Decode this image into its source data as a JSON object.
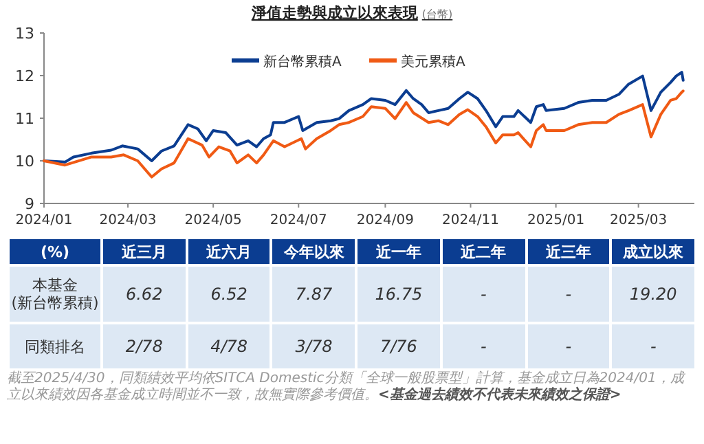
{
  "chart_data": [
    {
      "type": "line",
      "title": "淨值走勢與成立以來表現",
      "subtitle": "(台幣)",
      "xlim": [
        "2024-01-01",
        "2025-04-10"
      ],
      "ylim": [
        9,
        13
      ],
      "yticks": [
        9,
        10,
        11,
        12,
        13
      ],
      "xticks": [
        {
          "value": "2024-01",
          "label": "2024/01"
        },
        {
          "value": "2024-03",
          "label": "2024/03"
        },
        {
          "value": "2024-05",
          "label": "2024/05"
        },
        {
          "value": "2024-07",
          "label": "2024/07"
        },
        {
          "value": "2024-09",
          "label": "2024/09"
        },
        {
          "value": "2024-11",
          "label": "2024/11"
        },
        {
          "value": "2025-01",
          "label": "2025/01"
        },
        {
          "value": "2025-03",
          "label": "2025/03"
        }
      ],
      "legend": "top",
      "series": [
        {
          "name": "新台幣累積A",
          "color": "#0b3d91",
          "x": [
            "2024-01-01",
            "2024-01-16",
            "2024-01-22",
            "2024-02-04",
            "2024-02-18",
            "2024-02-26",
            "2024-03-08",
            "2024-03-18",
            "2024-03-25",
            "2024-04-03",
            "2024-04-13",
            "2024-04-20",
            "2024-04-26",
            "2024-05-01",
            "2024-05-10",
            "2024-05-18",
            "2024-05-26",
            "2024-06-01",
            "2024-06-06",
            "2024-06-11",
            "2024-06-13",
            "2024-06-21",
            "2024-07-01",
            "2024-07-04",
            "2024-07-14",
            "2024-07-24",
            "2024-07-30",
            "2024-08-06",
            "2024-08-16",
            "2024-08-22",
            "2024-09-01",
            "2024-09-08",
            "2024-09-16",
            "2024-09-21",
            "2024-09-27",
            "2024-10-02",
            "2024-10-09",
            "2024-10-16",
            "2024-10-24",
            "2024-10-30",
            "2024-11-06",
            "2024-11-12",
            "2024-11-19",
            "2024-11-24",
            "2024-12-02",
            "2024-12-05",
            "2024-12-14",
            "2024-12-18",
            "2024-12-23",
            "2024-12-25",
            "2025-01-07",
            "2025-01-17",
            "2025-01-27",
            "2025-02-06",
            "2025-02-15",
            "2025-02-22",
            "2025-03-04",
            "2025-03-10",
            "2025-03-17",
            "2025-03-24",
            "2025-03-28",
            "2025-04-01",
            "2025-04-02"
          ],
          "values": [
            10.0,
            9.97,
            10.09,
            10.18,
            10.25,
            10.35,
            10.28,
            10.0,
            10.23,
            10.35,
            10.85,
            10.75,
            10.47,
            10.71,
            10.66,
            10.37,
            10.47,
            10.33,
            10.52,
            10.61,
            10.9,
            10.9,
            11.04,
            10.71,
            10.9,
            10.94,
            10.99,
            11.18,
            11.32,
            11.46,
            11.42,
            11.32,
            11.65,
            11.46,
            11.32,
            11.13,
            11.18,
            11.23,
            11.46,
            11.61,
            11.46,
            11.18,
            10.8,
            11.04,
            11.04,
            11.18,
            10.9,
            11.27,
            11.32,
            11.18,
            11.23,
            11.37,
            11.42,
            11.42,
            11.56,
            11.8,
            11.99,
            11.18,
            11.61,
            11.84,
            11.99,
            12.08,
            11.89
          ]
        },
        {
          "name": "美元累積A",
          "color": "#f05a14",
          "x": [
            "2024-01-01",
            "2024-01-16",
            "2024-02-04",
            "2024-02-18",
            "2024-02-27",
            "2024-03-08",
            "2024-03-18",
            "2024-03-25",
            "2024-04-03",
            "2024-04-13",
            "2024-04-23",
            "2024-04-28",
            "2024-05-05",
            "2024-05-13",
            "2024-05-18",
            "2024-05-26",
            "2024-06-01",
            "2024-06-06",
            "2024-06-13",
            "2024-06-21",
            "2024-07-03",
            "2024-07-06",
            "2024-07-14",
            "2024-07-24",
            "2024-07-30",
            "2024-08-06",
            "2024-08-16",
            "2024-08-22",
            "2024-09-01",
            "2024-09-08",
            "2024-09-16",
            "2024-09-21",
            "2024-10-02",
            "2024-10-09",
            "2024-10-16",
            "2024-10-24",
            "2024-10-30",
            "2024-11-06",
            "2024-11-12",
            "2024-11-19",
            "2024-11-24",
            "2024-12-02",
            "2024-12-05",
            "2024-12-14",
            "2024-12-18",
            "2024-12-23",
            "2024-12-25",
            "2025-01-07",
            "2025-01-17",
            "2025-01-27",
            "2025-02-06",
            "2025-02-15",
            "2025-02-22",
            "2025-03-04",
            "2025-03-10",
            "2025-03-17",
            "2025-03-24",
            "2025-03-28",
            "2025-04-01",
            "2025-04-02"
          ],
          "values": [
            10.0,
            9.9,
            10.09,
            10.09,
            10.14,
            10.0,
            9.62,
            9.81,
            9.95,
            10.52,
            10.37,
            10.09,
            10.33,
            10.23,
            9.95,
            10.14,
            9.95,
            10.14,
            10.47,
            10.33,
            10.52,
            10.28,
            10.52,
            10.71,
            10.85,
            10.9,
            11.04,
            11.27,
            11.23,
            10.99,
            11.37,
            11.13,
            10.9,
            10.94,
            10.85,
            11.09,
            11.2,
            11.04,
            10.8,
            10.42,
            10.61,
            10.61,
            10.66,
            10.33,
            10.71,
            10.85,
            10.71,
            10.71,
            10.85,
            10.9,
            10.9,
            11.09,
            11.18,
            11.32,
            10.56,
            11.09,
            11.42,
            11.46,
            11.61,
            11.64
          ]
        }
      ],
      "annotations": [
        "截至2025/4/30，同類績效平均依SITCA Domestic分類「全球一般股票型」計算，基金成立日為2024/01，成立以來績效因各基金成立時間並不一致，故無實際參考價值。",
        "<基金過去績效不代表未來績效之保證>"
      ]
    },
    {
      "type": "other",
      "title": "(%)",
      "categories": [
        "近三月",
        "近六月",
        "今年以來",
        "近一年",
        "近二年",
        "近三年",
        "成立以來"
      ],
      "y_categories": [
        "本基金\n(新台幣累積)",
        "同類排名"
      ],
      "cell_labels": [
        [
          "6.62",
          "6.52",
          "7.87",
          "16.75",
          "-",
          "-",
          "19.20"
        ],
        [
          "2/78",
          "4/78",
          "3/78",
          "7/76",
          "-",
          "-",
          "-"
        ]
      ]
    }
  ]
}
